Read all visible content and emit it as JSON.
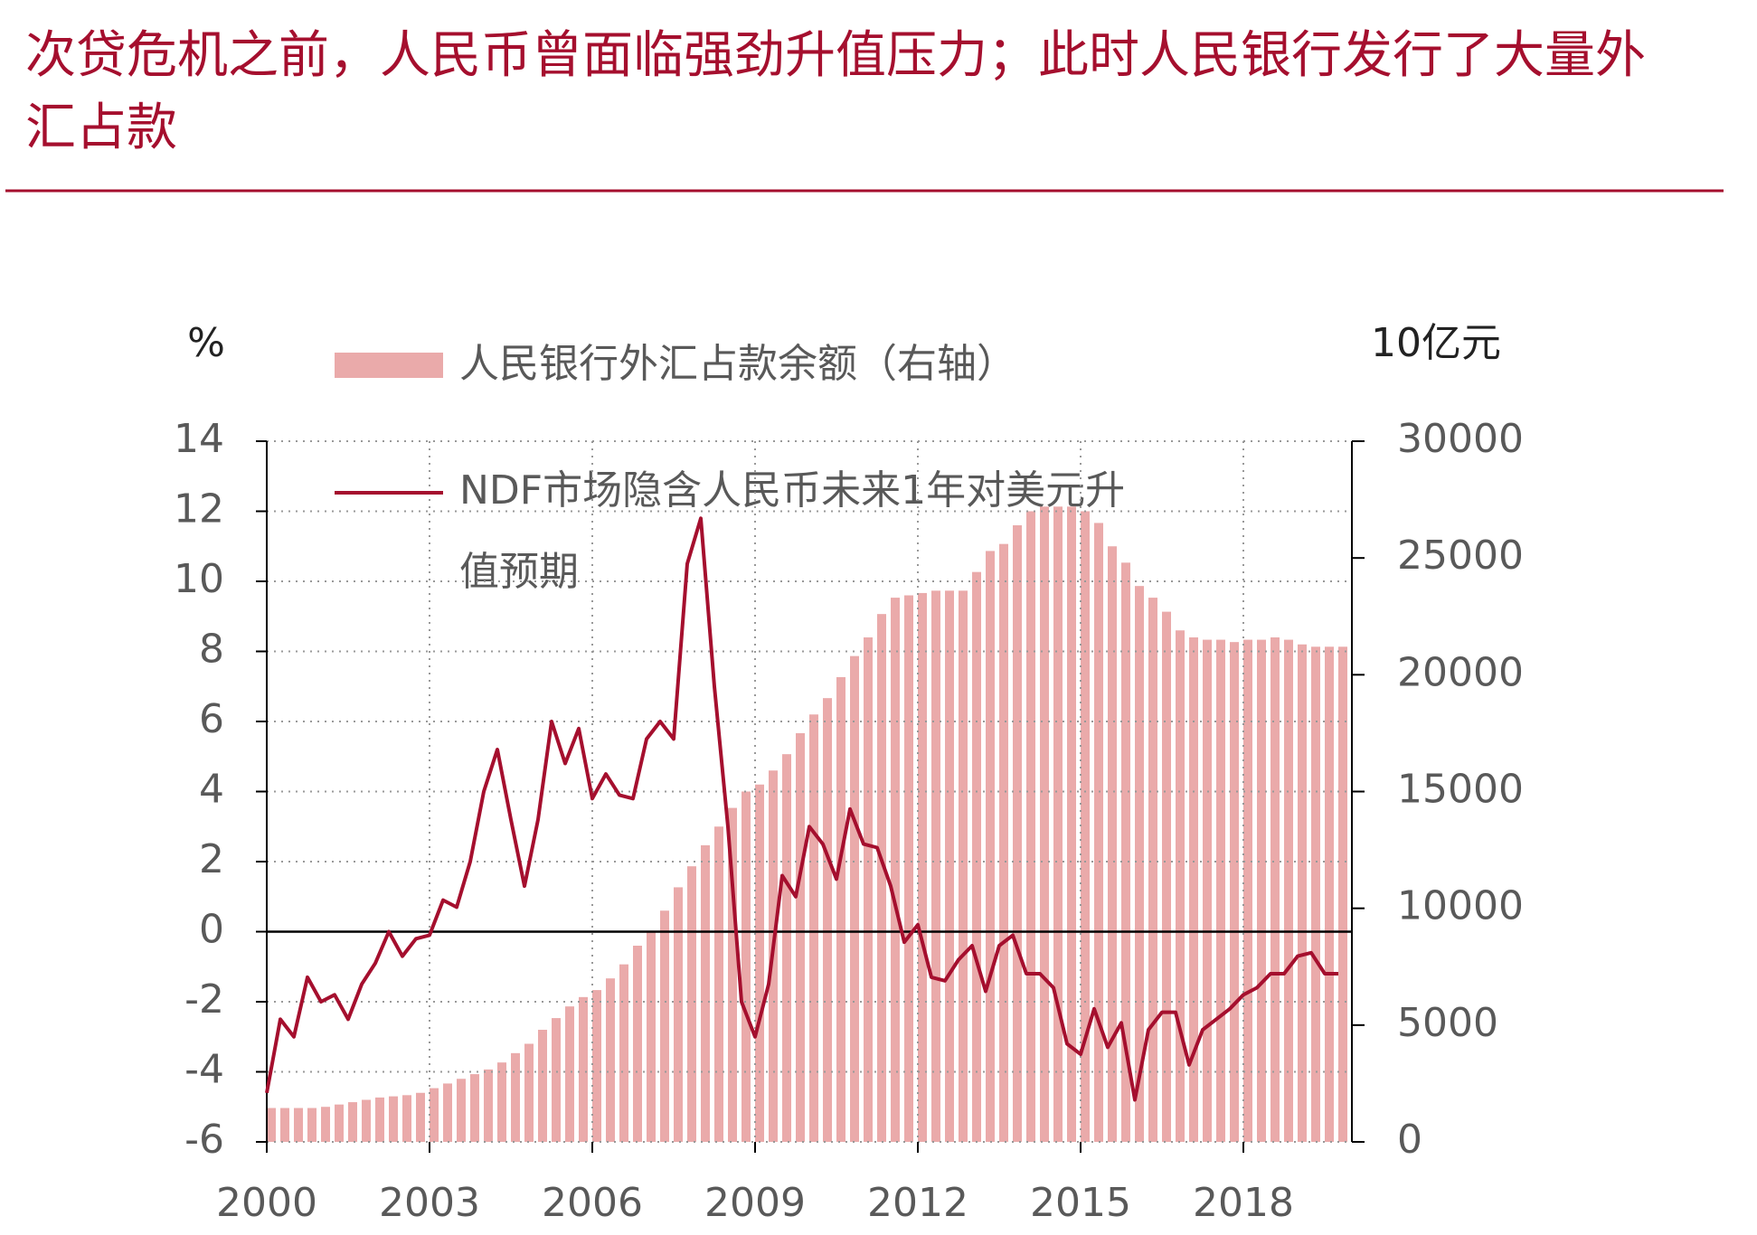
{
  "chart_data": {
    "type": "combo",
    "title": "次贷危机之前，人民币曾面临强劲升值压力；此时人民银行发行了大量外汇占款",
    "ylabel": "%",
    "y2label": "10亿元",
    "xlim": [
      2000,
      2020
    ],
    "xticks": [
      2000,
      2003,
      2006,
      2009,
      2012,
      2015,
      2018
    ],
    "ylim": [
      -6,
      14
    ],
    "yticks": [
      -6,
      -4,
      -2,
      0,
      2,
      4,
      6,
      8,
      10,
      12,
      14
    ],
    "y2lim": [
      0,
      30000
    ],
    "y2ticks": [
      0,
      5000,
      10000,
      15000,
      20000,
      25000,
      30000
    ],
    "grid": true,
    "x": [
      2000,
      2000.25,
      2000.5,
      2000.75,
      2001,
      2001.25,
      2001.5,
      2001.75,
      2002,
      2002.25,
      2002.5,
      2002.75,
      2003,
      2003.25,
      2003.5,
      2003.75,
      2004,
      2004.25,
      2004.5,
      2004.75,
      2005,
      2005.25,
      2005.5,
      2005.75,
      2006,
      2006.25,
      2006.5,
      2006.75,
      2007,
      2007.25,
      2007.5,
      2007.75,
      2008,
      2008.25,
      2008.5,
      2008.75,
      2009,
      2009.25,
      2009.5,
      2009.75,
      2010,
      2010.25,
      2010.5,
      2010.75,
      2011,
      2011.25,
      2011.5,
      2011.75,
      2012,
      2012.25,
      2012.5,
      2012.75,
      2013,
      2013.25,
      2013.5,
      2013.75,
      2014,
      2014.25,
      2014.5,
      2014.75,
      2015,
      2015.25,
      2015.5,
      2015.75,
      2016,
      2016.25,
      2016.5,
      2016.75,
      2017,
      2017.25,
      2017.5,
      2017.75,
      2018,
      2018.25,
      2018.5,
      2018.75,
      2019,
      2019.25,
      2019.5,
      2019.75
    ],
    "series": [
      {
        "name": "人民银行外汇占款余额（右轴）",
        "type": "bar",
        "axis": "y2",
        "color": "#eaaaaa",
        "values": [
          1450,
          1450,
          1450,
          1450,
          1500,
          1600,
          1700,
          1800,
          1900,
          1950,
          2000,
          2100,
          2300,
          2500,
          2700,
          2900,
          3100,
          3400,
          3800,
          4200,
          4800,
          5300,
          5800,
          6200,
          6500,
          7000,
          7600,
          8400,
          9000,
          9900,
          10900,
          11800,
          12700,
          13500,
          14300,
          15000,
          15300,
          15900,
          16600,
          17500,
          18300,
          19000,
          19900,
          20800,
          21600,
          22600,
          23300,
          23400,
          23500,
          23600,
          23600,
          23600,
          24400,
          25300,
          25600,
          26400,
          27000,
          27200,
          27200,
          27200,
          27000,
          26500,
          25500,
          24800,
          23800,
          23300,
          22700,
          21900,
          21600,
          21500,
          21500,
          21400,
          21500,
          21500,
          21600,
          21500,
          21300,
          21200,
          21200,
          21200
        ]
      },
      {
        "name": "NDF市场隐含人民币未来1年对美元升值预期",
        "type": "line",
        "color": "#a50f2e",
        "values": [
          -4.6,
          -2.5,
          -3,
          -1.3,
          -2,
          -1.8,
          -2.5,
          -1.5,
          -0.9,
          0,
          -0.7,
          -0.2,
          -0.1,
          0.9,
          0.7,
          2,
          4,
          5.2,
          3.2,
          1.3,
          3.2,
          6,
          4.8,
          5.8,
          3.8,
          4.5,
          3.9,
          3.8,
          5.5,
          6,
          5.5,
          10.5,
          11.8,
          7,
          3,
          -2,
          -3,
          -1.5,
          1.6,
          1,
          3,
          2.5,
          1.5,
          3.5,
          2.5,
          2.4,
          1.3,
          -0.3,
          0.2,
          -1.3,
          -1.4,
          -0.8,
          -0.4,
          -1.7,
          -0.4,
          -0.1,
          -1.2,
          -1.2,
          -1.6,
          -3.2,
          -3.5,
          -2.2,
          -3.3,
          -2.6,
          -4.8,
          -2.8,
          -2.3,
          -2.3,
          -3.8,
          -2.8,
          -2.5,
          -2.2,
          -1.8,
          -1.6,
          -1.2,
          -1.2,
          -0.7,
          -0.6,
          -1.2,
          -1.2
        ]
      }
    ]
  }
}
